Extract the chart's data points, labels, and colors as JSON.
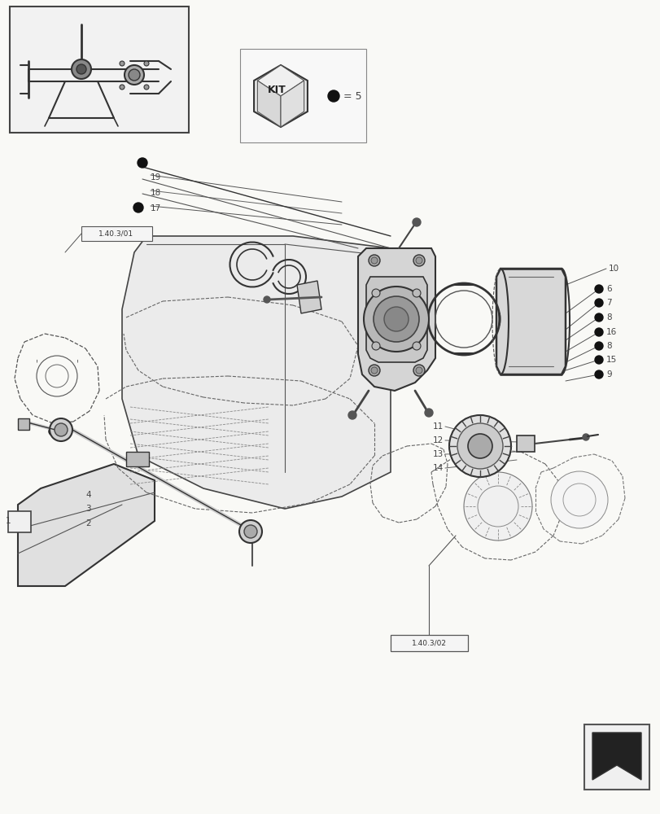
{
  "bg_color": "#f9f9f6",
  "line_color": "#1a1a1a",
  "fig_width": 8.12,
  "fig_height": 10.0,
  "dpi": 100,
  "ref_label_1": "1.40.3/01",
  "ref_label_2": "1.40.3/02",
  "kit_eq": "= 5"
}
